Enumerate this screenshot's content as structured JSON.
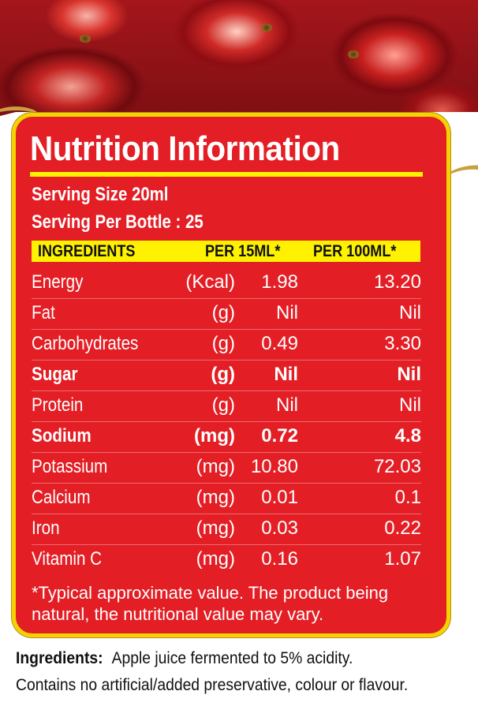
{
  "panel": {
    "title": "Nutrition Information",
    "serving_size": "Serving Size 20ml",
    "serving_per_bottle": "Serving Per Bottle : 25"
  },
  "table": {
    "headers": [
      "INGREDIENTS",
      "PER 15ML*",
      "PER 100ML*"
    ],
    "rows": [
      {
        "name": "Energy",
        "unit": "(Kcal)",
        "per15": "1.98",
        "per100": "13.20",
        "bold": false
      },
      {
        "name": "Fat",
        "unit": "(g)",
        "per15": "Nil",
        "per100": "Nil",
        "bold": false
      },
      {
        "name": "Carbohydrates",
        "unit": "(g)",
        "per15": "0.49",
        "per100": "3.30",
        "bold": false
      },
      {
        "name": "Sugar",
        "unit": "(g)",
        "per15": "Nil",
        "per100": "Nil",
        "bold": true
      },
      {
        "name": "Protein",
        "unit": "(g)",
        "per15": "Nil",
        "per100": "Nil",
        "bold": false
      },
      {
        "name": "Sodium",
        "unit": "(mg)",
        "per15": "0.72",
        "per100": "4.8",
        "bold": true
      },
      {
        "name": "Potassium",
        "unit": "(mg)",
        "per15": "10.80",
        "per100": "72.03",
        "bold": false
      },
      {
        "name": "Calcium",
        "unit": "(mg)",
        "per15": "0.01",
        "per100": "0.1",
        "bold": false
      },
      {
        "name": "Iron",
        "unit": "(mg)",
        "per15": "0.03",
        "per100": "0.22",
        "bold": false
      },
      {
        "name": "Vitamin C",
        "unit": "(mg)",
        "per15": "0.16",
        "per100": "1.07",
        "bold": false
      }
    ]
  },
  "footnote": "*Typical approximate value. The product being natural, the nutritional value may vary.",
  "ingredients": {
    "label": "Ingredients:",
    "line1": "Apple juice fermented to 5% acidity.",
    "line2": "Contains no artificial/added preservative, colour or flavour."
  },
  "colors": {
    "panel_red": "#e31e25",
    "border_yellow": "#f4d400",
    "header_yellow": "#fff200",
    "accent_gold": "#c9a040"
  }
}
